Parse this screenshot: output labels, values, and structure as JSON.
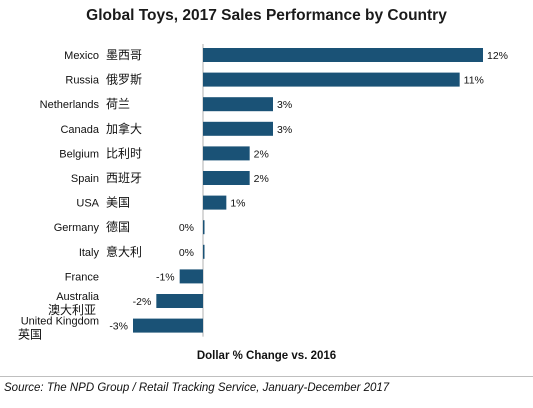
{
  "chart_data": {
    "type": "bar",
    "orientation": "horizontal",
    "title": "Global Toys, 2017 Sales Performance by Country",
    "xlabel": "Dollar % Change vs. 2016",
    "ylabel": "",
    "xlim": [
      -3,
      12
    ],
    "grid": false,
    "bar_color": "#1a5276",
    "categories": [
      {
        "en": "Mexico",
        "zh": "墨西哥",
        "value": 12,
        "label": "12%"
      },
      {
        "en": "Russia",
        "zh": "俄罗斯",
        "value": 11,
        "label": "11%"
      },
      {
        "en": "Netherlands",
        "zh": "荷兰",
        "value": 3,
        "label": "3%"
      },
      {
        "en": "Canada",
        "zh": "加拿大",
        "value": 3,
        "label": "3%"
      },
      {
        "en": "Belgium",
        "zh": "比利时",
        "value": 2,
        "label": "2%"
      },
      {
        "en": "Spain",
        "zh": "西班牙",
        "value": 2,
        "label": "2%"
      },
      {
        "en": "USA",
        "zh": "美国",
        "value": 1,
        "label": "1%"
      },
      {
        "en": "Germany",
        "zh": "德国",
        "value": 0,
        "label": "0%"
      },
      {
        "en": "Italy",
        "zh": "意大利",
        "value": 0,
        "label": "0%"
      },
      {
        "en": "France",
        "zh": "",
        "value": -1,
        "label": "-1%"
      },
      {
        "en": "Australia",
        "zh": "澳大利亚",
        "value": -2,
        "label": "-2%"
      },
      {
        "en": "United Kingdom",
        "zh": "英国",
        "value": -3,
        "label": "-3%"
      }
    ]
  },
  "source": "Source: The NPD Group / Retail Tracking Service, January-December 2017"
}
